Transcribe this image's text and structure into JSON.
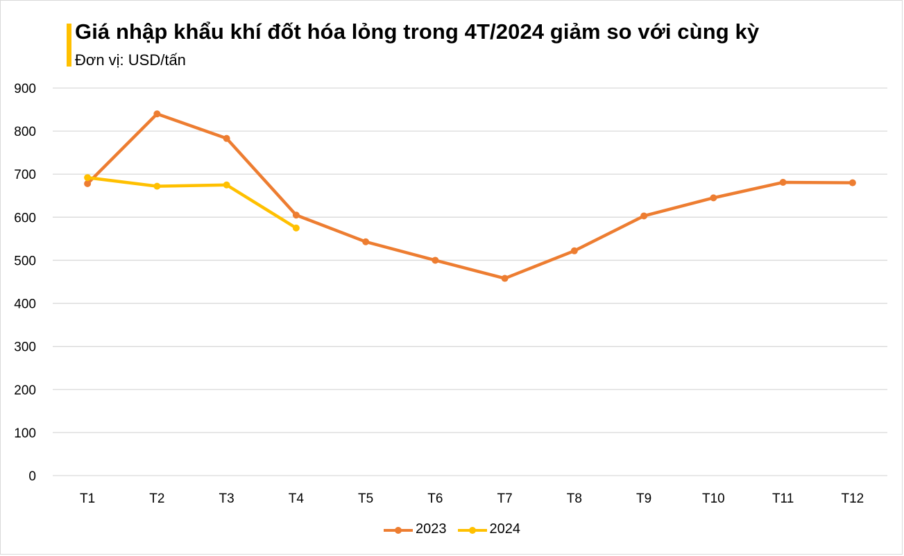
{
  "header": {
    "title": "Giá nhập khẩu khí đốt hóa lỏng trong 4T/2024 giảm so với cùng kỳ",
    "subtitle": "Đơn vị: USD/tấn",
    "accent_color": "#ffc000"
  },
  "chart_data": {
    "type": "line",
    "title": "Giá nhập khẩu khí đốt hóa lỏng trong 4T/2024 giảm so với cùng kỳ",
    "subtitle": "Đơn vị: USD/tấn",
    "categories": [
      "T1",
      "T2",
      "T3",
      "T4",
      "T5",
      "T6",
      "T7",
      "T8",
      "T9",
      "T10",
      "T11",
      "T12"
    ],
    "series": [
      {
        "name": "2023",
        "color": "#ed7d31",
        "values": [
          678,
          840,
          783,
          605,
          543,
          500,
          458,
          522,
          603,
          645,
          681,
          680
        ]
      },
      {
        "name": "2024",
        "color": "#ffc000",
        "values": [
          692,
          672,
          675,
          575,
          null,
          null,
          null,
          null,
          null,
          null,
          null,
          null
        ]
      }
    ],
    "ylim": [
      0,
      900
    ],
    "yticks": [
      "0",
      "100",
      "200",
      "300",
      "400",
      "500",
      "600",
      "700",
      "800",
      "900"
    ],
    "grid": true,
    "legend": "bottom"
  }
}
